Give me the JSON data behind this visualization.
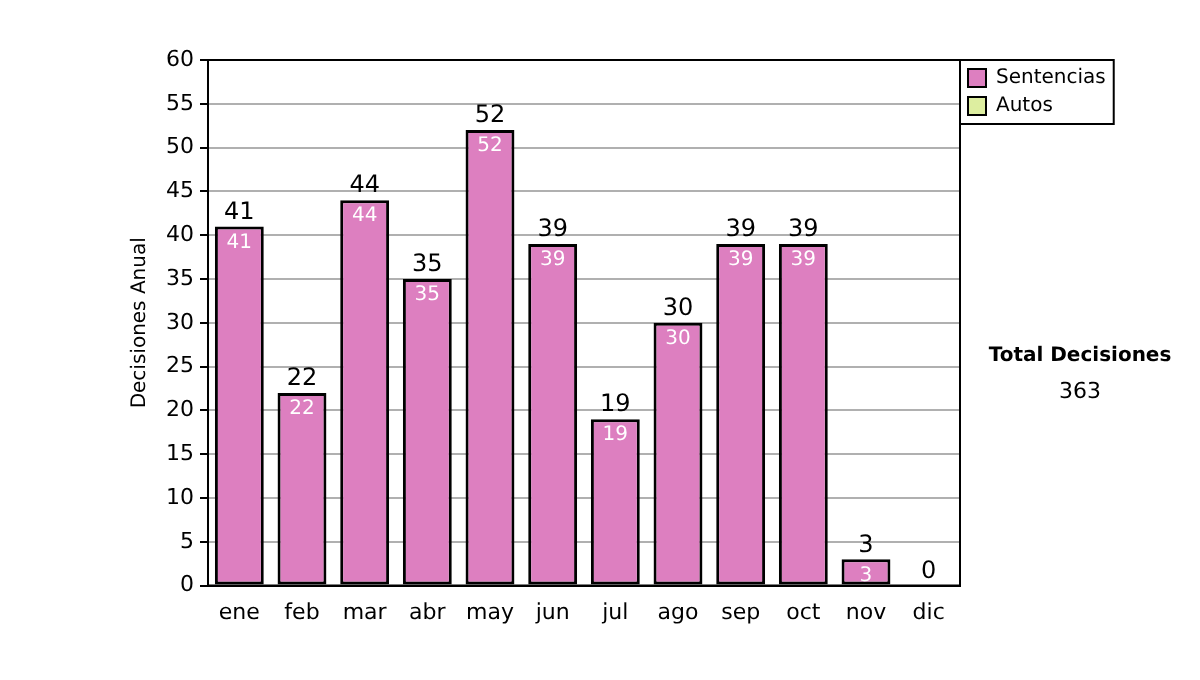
{
  "chart_data": {
    "type": "bar",
    "ylabel": "Decisiones Anual",
    "categories": [
      "ene",
      "feb",
      "mar",
      "abr",
      "may",
      "jun",
      "jul",
      "ago",
      "sep",
      "oct",
      "nov",
      "dic"
    ],
    "series": [
      {
        "name": "Sentencias",
        "color": "#dd7fc0",
        "values": [
          41,
          22,
          44,
          35,
          52,
          39,
          19,
          30,
          39,
          39,
          3,
          0
        ],
        "value_labels": [
          "41",
          "22",
          "44",
          "35",
          "52",
          "39",
          "19",
          "30",
          "39",
          "39",
          "3",
          null
        ]
      },
      {
        "name": "Autos",
        "color": "#ddeea0",
        "values": [
          0,
          0,
          0,
          0,
          0,
          0,
          0,
          0,
          0,
          0,
          0,
          0
        ]
      }
    ],
    "stacked": true,
    "totals": [
      "41",
      "22",
      "44",
      "35",
      "52",
      "39",
      "19",
      "30",
      "39",
      "39",
      "3",
      "0"
    ],
    "ylim": [
      0,
      60
    ],
    "yticks": [
      0,
      5,
      10,
      15,
      20,
      25,
      30,
      35,
      40,
      45,
      50,
      55,
      60
    ],
    "grid": "y",
    "legend": "right",
    "annotations": [
      "Total Decisiones",
      "363"
    ]
  }
}
